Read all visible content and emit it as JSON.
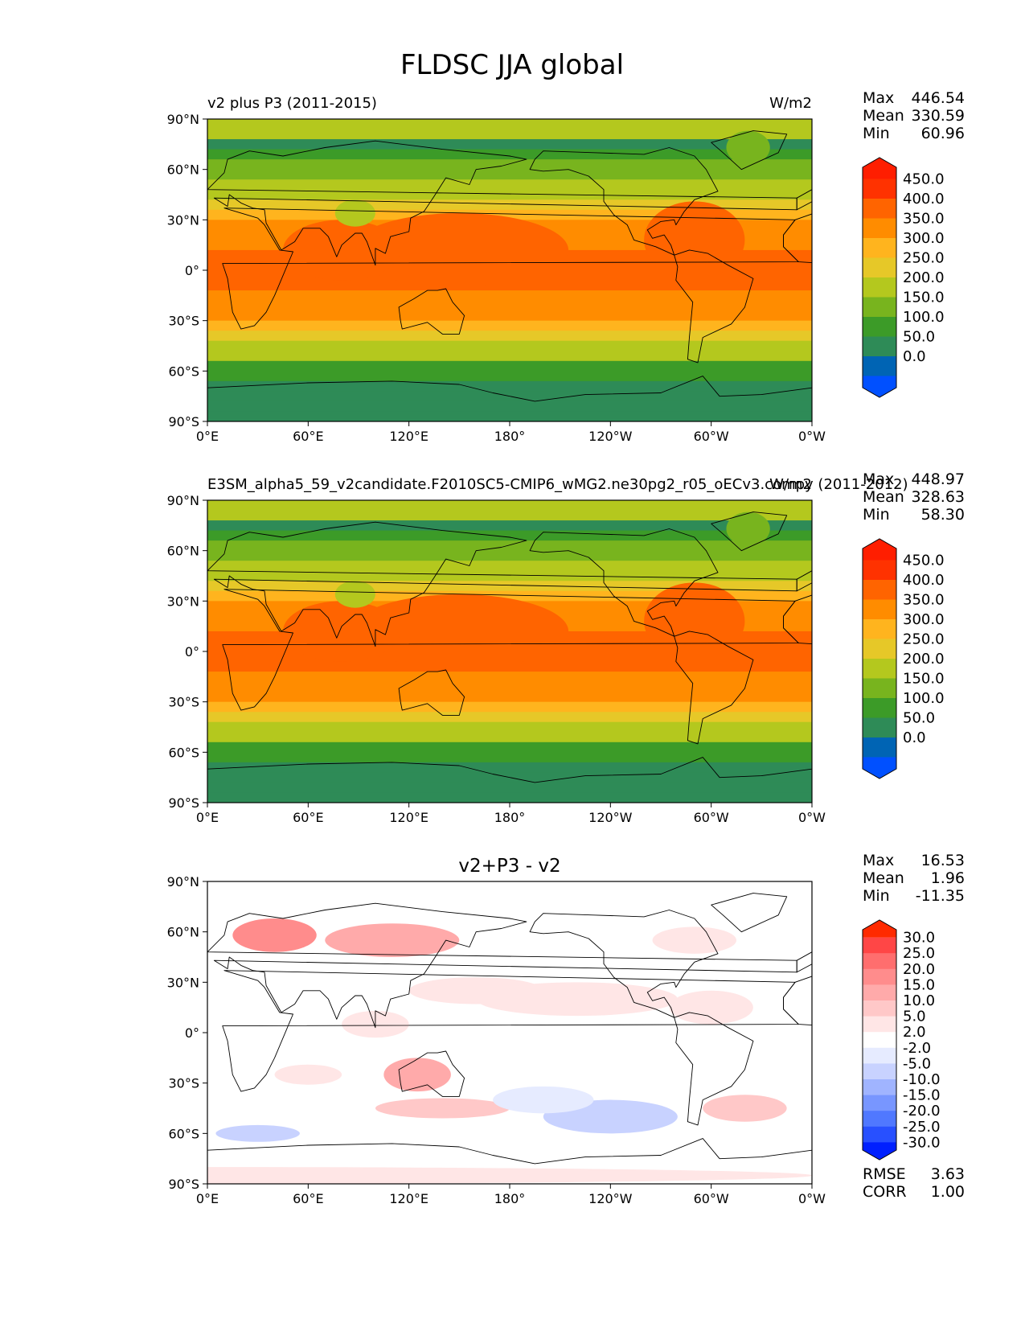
{
  "figure_title": "FLDSC JJA global",
  "colors": {
    "levels": [
      "#0050ff",
      "#0064b4",
      "#2e8b57",
      "#3c9b28",
      "#78b41e",
      "#b4c81e",
      "#e6c828",
      "#ffb41e",
      "#ff8c00",
      "#ff6400",
      "#ff3200",
      "#ff1e00"
    ],
    "diff_levels": [
      "#0020ff",
      "#2850ff",
      "#5078ff",
      "#7896ff",
      "#a0b4ff",
      "#c8d2ff",
      "#e6ebff",
      "#ffffff",
      "#ffe6e6",
      "#ffc8c8",
      "#ffaaaa",
      "#ff8c8c",
      "#ff6e6e",
      "#ff4646",
      "#ff2a00"
    ],
    "coastline": "#000000"
  },
  "chart_data": [
    {
      "type": "heatmap",
      "name": "test",
      "title_left": "v2 plus P3 (2011-2015)",
      "title_right": "W/m2",
      "stats": {
        "labels": [
          "Max",
          "Mean",
          "Min"
        ],
        "values": [
          "446.54",
          "330.59",
          "60.96"
        ]
      },
      "xticks": [
        "0°E",
        "60°E",
        "120°E",
        "180°",
        "120°W",
        "60°W",
        "0°W"
      ],
      "yticks": [
        "90°N",
        "60°N",
        "30°N",
        "0°",
        "30°S",
        "60°S",
        "90°S"
      ],
      "xlim": [
        0,
        360
      ],
      "ylim": [
        -90,
        90
      ],
      "colorbar_levels": [
        "450.0",
        "400.0",
        "350.0",
        "300.0",
        "250.0",
        "200.0",
        "150.0",
        "100.0",
        "50.0",
        "0.0"
      ]
    },
    {
      "type": "heatmap",
      "name": "reference",
      "title_left": "E3SM_alpha5_59_v2candidate.F2010SC5-CMIP6_wMG2.ne30pg2_r05_oECv3.compy (2011-2012)",
      "title_right": "W/m2",
      "stats": {
        "labels": [
          "Max",
          "Mean",
          "Min"
        ],
        "values": [
          "448.97",
          "328.63",
          "58.30"
        ]
      },
      "xticks": [
        "0°E",
        "60°E",
        "120°E",
        "180°",
        "120°W",
        "60°W",
        "0°W"
      ],
      "yticks": [
        "90°N",
        "60°N",
        "30°N",
        "0°",
        "30°S",
        "60°S",
        "90°S"
      ],
      "xlim": [
        0,
        360
      ],
      "ylim": [
        -90,
        90
      ],
      "colorbar_levels": [
        "450.0",
        "400.0",
        "350.0",
        "300.0",
        "250.0",
        "200.0",
        "150.0",
        "100.0",
        "50.0",
        "0.0"
      ]
    },
    {
      "type": "heatmap",
      "name": "difference",
      "title_center": "v2+P3 - v2",
      "stats": {
        "labels": [
          "Max",
          "Mean",
          "Min"
        ],
        "values": [
          "16.53",
          "1.96",
          "-11.35"
        ]
      },
      "metrics": {
        "labels": [
          "RMSE",
          "CORR"
        ],
        "values": [
          "3.63",
          "1.00"
        ]
      },
      "xticks": [
        "0°E",
        "60°E",
        "120°E",
        "180°",
        "120°W",
        "60°W",
        "0°W"
      ],
      "yticks": [
        "90°N",
        "60°N",
        "30°N",
        "0°",
        "30°S",
        "60°S",
        "90°S"
      ],
      "xlim": [
        0,
        360
      ],
      "ylim": [
        -90,
        90
      ],
      "colorbar_levels": [
        "30.0",
        "25.0",
        "20.0",
        "15.0",
        "10.0",
        "5.0",
        "2.0",
        "-2.0",
        "-5.0",
        "-10.0",
        "-15.0",
        "-20.0",
        "-25.0",
        "-30.0"
      ]
    }
  ]
}
